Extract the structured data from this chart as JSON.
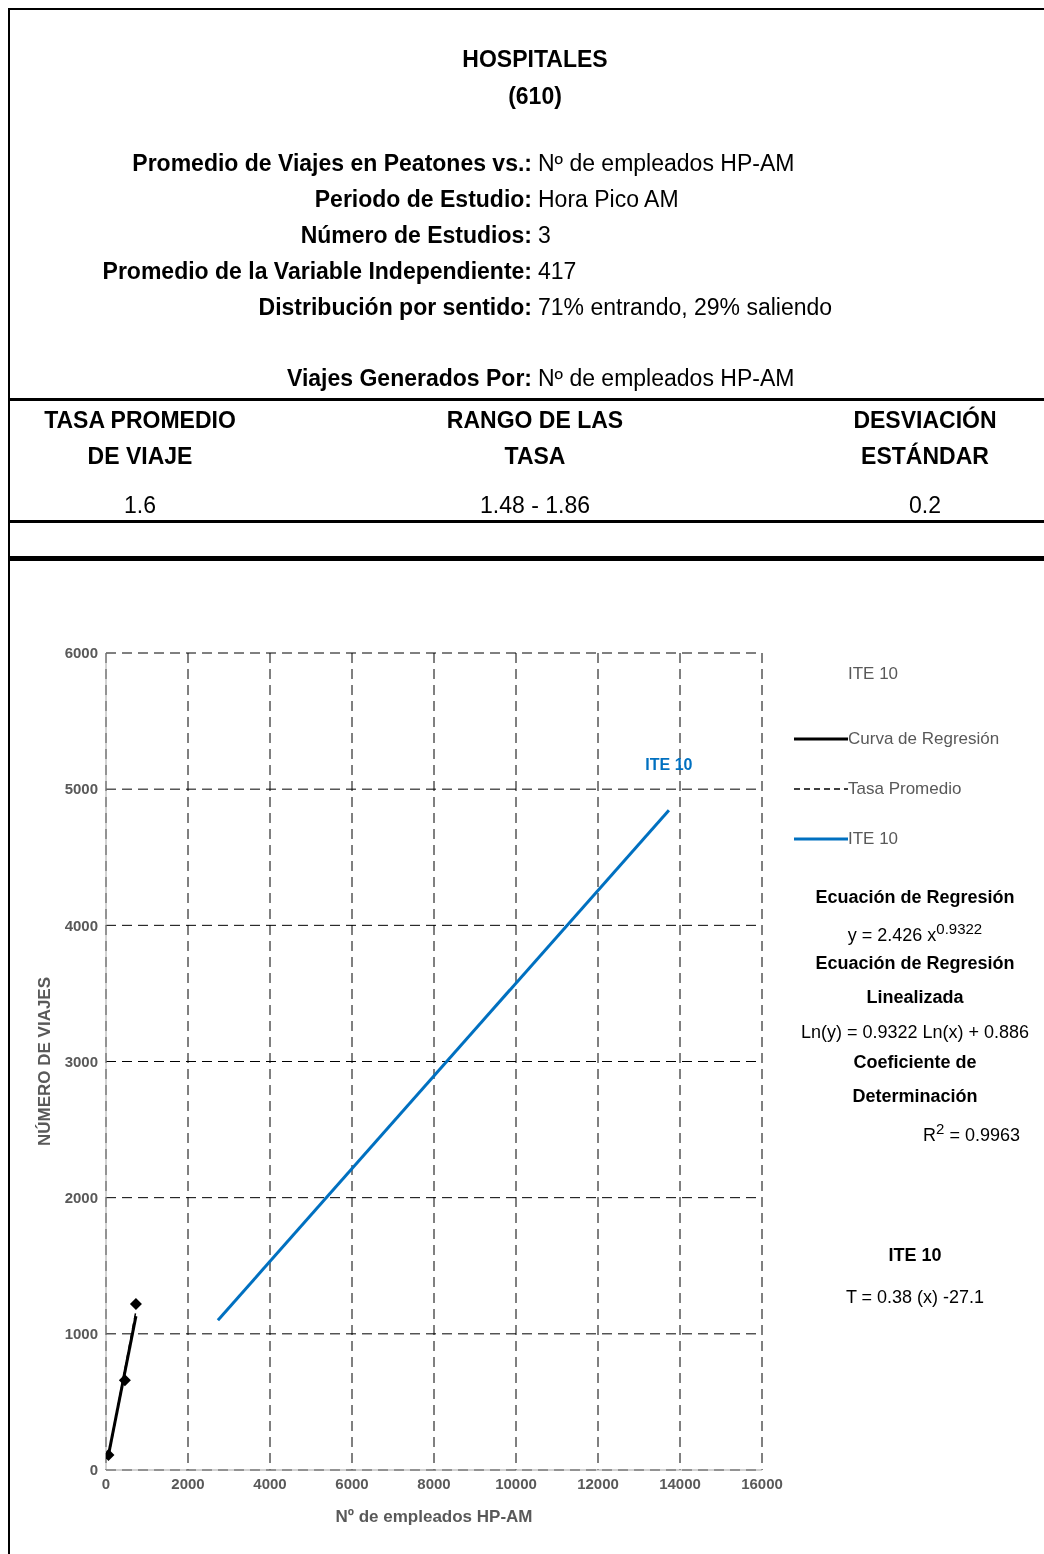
{
  "chart_data": {
    "type": "line",
    "title": "HOSPITALES",
    "subtitle": "(610)",
    "xlabel": "Nº de empleados HP-AM",
    "ylabel": "NÚMERO DE VIAJES",
    "legend_title": "ITE 10",
    "xlim": [
      0,
      16000
    ],
    "xticks": [
      0,
      2000,
      4000,
      6000,
      8000,
      10000,
      12000,
      14000,
      16000
    ],
    "ylim": [
      0,
      6000
    ],
    "yticks": [
      0,
      1000,
      2000,
      3000,
      4000,
      5000,
      6000
    ],
    "grid": true,
    "legend": "right",
    "series": [
      {
        "name": "Curva de Regresión",
        "color": "#000000",
        "line_style": "solid",
        "x": [
          60,
          730
        ],
        "values": [
          110,
          1130
        ]
      },
      {
        "name": "Tasa Promedio",
        "color": "#000000",
        "line_style": "dashed",
        "x": [
          60,
          730
        ],
        "values": [
          96,
          1168
        ]
      },
      {
        "name": "ITE 10",
        "color": "#0070c0",
        "line_style": "solid",
        "x": [
          2730,
          13730
        ],
        "values": [
          1100,
          4846
        ]
      },
      {
        "type": "scatter",
        "color": "#000000",
        "marker": "diamond",
        "x": [
          60,
          460,
          730
        ],
        "values": [
          110,
          660,
          1220
        ]
      }
    ],
    "annotations": [
      "Promedio de Viajes en Peatones vs.: Nº de empleados HP-AM",
      "Periodo de Estudio: Hora Pico AM",
      "Número de Estudios: 3",
      "Promedio de la Variable Independiente: 417",
      "Distribución por sentido: 71% entrando,  29% saliendo",
      "Viajes Generados Por: Nº de empleados HP-AM",
      "TASA PROMEDIO DE VIAJE",
      "RANGO DE LAS TASA",
      "DESVIACIÓN ESTÁNDAR",
      "1.6",
      "1.48 - 1.86",
      "0.2",
      "ITE 10",
      "Ecuación de Regresión",
      "y = 2.426 x$^{0.9322}$",
      "Ecuación de Regresión Linealizada",
      "Ln(y) = 0.9322 Ln(x) + 0.886",
      "Coeficiente de Determinación",
      "R$^{2}$ = 0.9963",
      "ITE 10",
      "T = 0.38 (x) -27.1"
    ]
  }
}
